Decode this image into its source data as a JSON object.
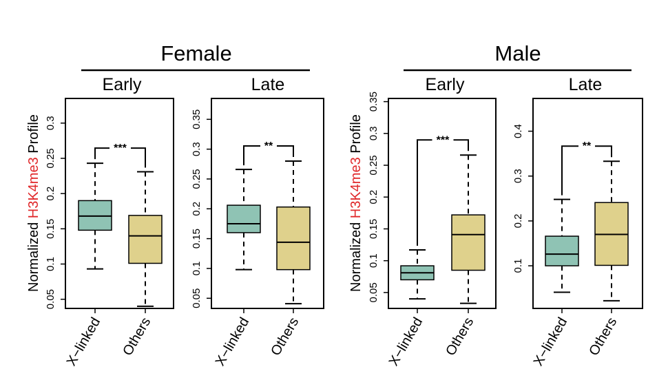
{
  "colors": {
    "xlinked": "#8fc3b4",
    "others": "#dfd18c",
    "highlight": "#e0292b"
  },
  "groups": [
    {
      "title": "Female"
    },
    {
      "title": "Male"
    }
  ],
  "ylabel": {
    "prefix": "Normalized ",
    "highlight": "H3K4me3",
    "suffix": " Profile"
  },
  "chart_data": [
    {
      "type": "box",
      "group": "Female",
      "title": "Early",
      "categories": [
        "X−linked",
        "Others"
      ],
      "ylim": [
        0.037,
        0.335
      ],
      "ticks": [
        0.05,
        0.1,
        0.15,
        0.2,
        0.25,
        0.3
      ],
      "tick_labels": [
        "0.05",
        "0.1",
        "0.15",
        "0.2",
        "0.25",
        "0.3"
      ],
      "ylabel": "Normalized H3K4me3 Profile",
      "boxes": [
        {
          "name": "X−linked",
          "min": 0.093,
          "q1": 0.148,
          "median": 0.168,
          "q3": 0.19,
          "max": 0.243
        },
        {
          "name": "Others",
          "min": 0.04,
          "q1": 0.101,
          "median": 0.14,
          "q3": 0.169,
          "max": 0.231
        }
      ],
      "significance": "***"
    },
    {
      "type": "box",
      "group": "Female",
      "title": "Late",
      "categories": [
        "X−linked",
        "Others"
      ],
      "ylim": [
        0.033,
        0.385
      ],
      "ticks": [
        0.05,
        0.1,
        0.15,
        0.2,
        0.25,
        0.3,
        0.35
      ],
      "tick_labels": [
        "0.05",
        "0.1",
        "0.15",
        "0.2",
        "0.25",
        "0.3",
        "0.35"
      ],
      "ylabel": "",
      "boxes": [
        {
          "name": "X−linked",
          "min": 0.098,
          "q1": 0.16,
          "median": 0.175,
          "q3": 0.206,
          "max": 0.266
        },
        {
          "name": "Others",
          "min": 0.041,
          "q1": 0.098,
          "median": 0.144,
          "q3": 0.203,
          "max": 0.28
        }
      ],
      "significance": "**"
    },
    {
      "type": "box",
      "group": "Male",
      "title": "Early",
      "categories": [
        "X−linked",
        "Others"
      ],
      "ylim": [
        0.025,
        0.355
      ],
      "ticks": [
        0.05,
        0.1,
        0.15,
        0.2,
        0.25,
        0.3,
        0.35
      ],
      "tick_labels": [
        "0.05",
        "0.1",
        "0.15",
        "0.2",
        "0.25",
        "0.3",
        "0.35"
      ],
      "ylabel": "Normalized H3K4me3 Profile",
      "boxes": [
        {
          "name": "X−linked",
          "min": 0.04,
          "q1": 0.07,
          "median": 0.081,
          "q3": 0.092,
          "max": 0.117
        },
        {
          "name": "Others",
          "min": 0.033,
          "q1": 0.085,
          "median": 0.141,
          "q3": 0.172,
          "max": 0.266
        }
      ],
      "significance": "***"
    },
    {
      "type": "box",
      "group": "Male",
      "title": "Late",
      "categories": [
        "X−linked",
        "Others"
      ],
      "ylim": [
        0.005,
        0.473
      ],
      "ticks": [
        0.1,
        0.2,
        0.3,
        0.4
      ],
      "tick_labels": [
        "0.1",
        "0.2",
        "0.3",
        "0.4"
      ],
      "ylabel": "",
      "boxes": [
        {
          "name": "X−linked",
          "min": 0.041,
          "q1": 0.1,
          "median": 0.126,
          "q3": 0.166,
          "max": 0.248
        },
        {
          "name": "Others",
          "min": 0.022,
          "q1": 0.101,
          "median": 0.17,
          "q3": 0.241,
          "max": 0.333
        }
      ],
      "significance": "**"
    }
  ]
}
